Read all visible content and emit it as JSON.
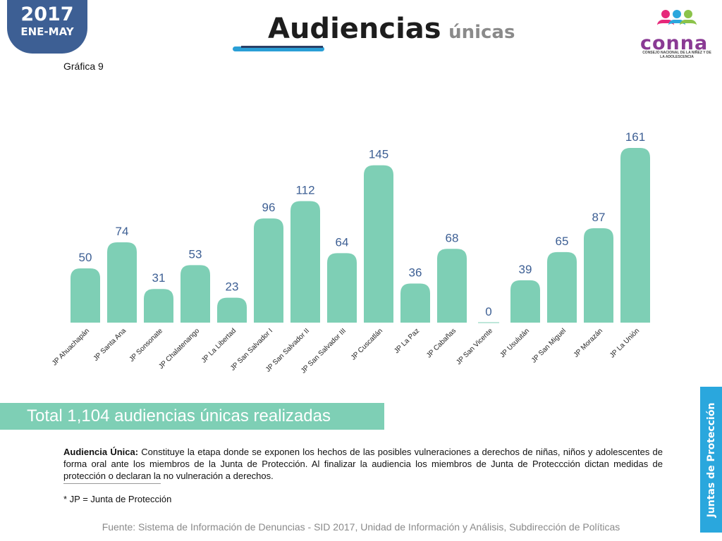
{
  "badge": {
    "year": "2017",
    "period": "ENE-MAY"
  },
  "grafica_label": "Gráfica 9",
  "title": {
    "main": "Audiencias",
    "sub": "únicas"
  },
  "logo": {
    "word": "conna",
    "caption": "CONSEJO NACIONAL DE LA NIÑEZ Y DE LA ADOLESCENCIA",
    "colors": [
      "#e6287a",
      "#2aa7dd",
      "#8bc34a",
      "#f6a21e"
    ]
  },
  "chart_data": {
    "type": "bar",
    "categories": [
      "JP Ahuachapán",
      "JP Santa Ana",
      "JP Sonsonate",
      "JP Chalatenango",
      "JP La Libertad",
      "JP San Salvador I",
      "JP San Salvador II",
      "JP San Salvador III",
      "JP Cuscatlán",
      "JP La Paz",
      "JP Cabañas",
      "JP San Vicente",
      "JP Usulután",
      "JP San Miguel",
      "JP Morazán",
      "JP La Unión"
    ],
    "values": [
      50,
      74,
      31,
      53,
      23,
      96,
      112,
      64,
      145,
      36,
      68,
      0,
      39,
      65,
      87,
      161
    ],
    "ylim": [
      0,
      161
    ],
    "bar_color": "#7ecfb5",
    "label_color": "#3d5f94",
    "grid": false,
    "legend": "none"
  },
  "total_text": "Total 1,104 audiencias únicas realizadas",
  "definition": {
    "term": "Audiencia Única:",
    "text": "Constituye la etapa donde se exponen los hechos de las posibles vulneraciones a derechos de niñas, niños y adolescentes de forma oral ante los miembros de la Junta de Protección.  Al finalizar la audiencia los miembros de Junta de Proteccción dictan medidas de protección o  declaran la no vulneración a derechos."
  },
  "footnote": "* JP = Junta de Protección",
  "source": "Fuente: Sistema de Información de Denuncias - SID 2017, Unidad de Información y Análisis, Subdirección de Políticas",
  "side_tab": "Juntas de Protección"
}
